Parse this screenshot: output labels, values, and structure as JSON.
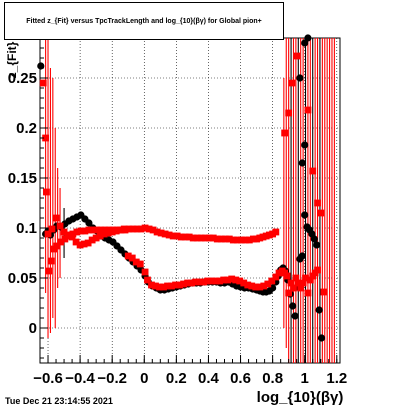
{
  "header": {
    "title": "Fitted z_{Fit} versus TpcTrackLength and log_{10}(βγ) for Global pion+"
  },
  "footer": {
    "timestamp": "Tue Dec 21 23:14:55 2021"
  },
  "chart_data": {
    "type": "scatter",
    "title": "Fitted z_{Fit} versus TpcTrackLength and log_{10}(βγ) for Global pion+",
    "xlabel": "log_{10}(βγ)",
    "ylabel": "z_{Fit}",
    "xlim": [
      -0.65,
      1.22
    ],
    "ylim": [
      -0.035,
      0.29
    ],
    "x_ticks": [
      -0.6,
      -0.4,
      -0.2,
      0,
      0.2,
      0.4,
      0.6,
      0.8,
      1,
      1.2
    ],
    "x_tick_labels": [
      "−0.6",
      "−0.4",
      "−0.2",
      "0",
      "0.2",
      "0.4",
      "0.6",
      "0.8",
      "1",
      "1.2"
    ],
    "y_ticks": [
      0,
      0.05,
      0.1,
      0.15,
      0.2,
      0.25
    ],
    "y_tick_labels": [
      "0",
      "0.05",
      "0.1",
      "0.15",
      "0.2",
      "0.25"
    ],
    "grid": true,
    "legend": "none",
    "series": [
      {
        "color": "#000000",
        "marker": "circle",
        "points": [
          [
            -0.645,
            0.262
          ],
          [
            -0.615,
            0.094
          ],
          [
            -0.6,
            0.097
          ],
          [
            -0.585,
            0.093
          ],
          [
            -0.565,
            0.098
          ],
          [
            -0.545,
            0.102
          ],
          [
            -0.52,
            0.101
          ],
          [
            -0.495,
            0.104
          ],
          [
            -0.47,
            0.107
          ],
          [
            -0.445,
            0.109
          ],
          [
            -0.42,
            0.111
          ],
          [
            -0.395,
            0.113
          ],
          [
            -0.37,
            0.109
          ],
          [
            -0.345,
            0.105
          ],
          [
            -0.32,
            0.1
          ],
          [
            -0.295,
            0.097
          ],
          [
            -0.27,
            0.092
          ],
          [
            -0.245,
            0.09
          ],
          [
            -0.22,
            0.088
          ],
          [
            -0.195,
            0.086
          ],
          [
            -0.17,
            0.082
          ],
          [
            -0.145,
            0.078
          ],
          [
            -0.12,
            0.074
          ],
          [
            -0.095,
            0.07
          ],
          [
            -0.07,
            0.066
          ],
          [
            -0.045,
            0.062
          ],
          [
            -0.02,
            0.058
          ],
          [
            0.005,
            0.052
          ],
          [
            0.025,
            0.046
          ],
          [
            0.05,
            0.042
          ],
          [
            0.075,
            0.04
          ],
          [
            0.1,
            0.038
          ],
          [
            0.125,
            0.038
          ],
          [
            0.15,
            0.039
          ],
          [
            0.175,
            0.04
          ],
          [
            0.2,
            0.041
          ],
          [
            0.225,
            0.042
          ],
          [
            0.25,
            0.043
          ],
          [
            0.275,
            0.044
          ],
          [
            0.3,
            0.045
          ],
          [
            0.325,
            0.045
          ],
          [
            0.35,
            0.045
          ],
          [
            0.375,
            0.046
          ],
          [
            0.4,
            0.046
          ],
          [
            0.425,
            0.046
          ],
          [
            0.45,
            0.046
          ],
          [
            0.475,
            0.045
          ],
          [
            0.5,
            0.045
          ],
          [
            0.525,
            0.046
          ],
          [
            0.55,
            0.044
          ],
          [
            0.575,
            0.042
          ],
          [
            0.6,
            0.041
          ],
          [
            0.625,
            0.04
          ],
          [
            0.65,
            0.04
          ],
          [
            0.675,
            0.039
          ],
          [
            0.7,
            0.038
          ],
          [
            0.72,
            0.037
          ],
          [
            0.74,
            0.036
          ],
          [
            0.76,
            0.036
          ],
          [
            0.78,
            0.037
          ],
          [
            0.8,
            0.04
          ],
          [
            0.82,
            0.046
          ],
          [
            0.835,
            0.052
          ],
          [
            0.85,
            0.058
          ],
          [
            0.865,
            0.06
          ],
          [
            0.88,
            0.057
          ],
          [
            0.895,
            0.048
          ],
          [
            0.91,
            0.034
          ],
          [
            0.925,
            0.022
          ],
          [
            0.94,
            0.012
          ],
          [
            0.955,
            0.041
          ],
          [
            0.97,
            0.069
          ],
          [
            0.985,
            0.072
          ],
          [
            1.0,
            0.113
          ],
          [
            1.015,
            0.101
          ],
          [
            1.03,
            0.098
          ],
          [
            1.045,
            0.094
          ],
          [
            1.06,
            0.089
          ],
          [
            1.075,
            0.083
          ],
          [
            1.09,
            0.018
          ],
          [
            1.105,
            -0.01
          ],
          [
            0.985,
            0.165
          ],
          [
            1.0,
            0.183
          ],
          [
            0.97,
            0.25
          ],
          [
            1.0,
            0.285
          ],
          [
            1.02,
            0.29
          ]
        ]
      },
      {
        "color": "#ff0000",
        "marker": "square",
        "points": [
          [
            -0.61,
            0.136
          ],
          [
            -0.595,
            0.057
          ],
          [
            -0.58,
            0.067
          ],
          [
            -0.565,
            0.079
          ],
          [
            -0.545,
            0.082
          ],
          [
            -0.52,
            0.086
          ],
          [
            -0.495,
            0.089
          ],
          [
            -0.47,
            0.092
          ],
          [
            -0.445,
            0.094
          ],
          [
            -0.42,
            0.096
          ],
          [
            -0.395,
            0.097
          ],
          [
            -0.37,
            0.097
          ],
          [
            -0.345,
            0.098
          ],
          [
            -0.32,
            0.098
          ],
          [
            -0.295,
            0.098
          ],
          [
            -0.27,
            0.098
          ],
          [
            -0.245,
            0.098
          ],
          [
            -0.22,
            0.098
          ],
          [
            -0.195,
            0.098
          ],
          [
            -0.17,
            0.098
          ],
          [
            -0.145,
            0.098
          ],
          [
            -0.12,
            0.098
          ],
          [
            -0.095,
            0.099
          ],
          [
            -0.07,
            0.099
          ],
          [
            -0.045,
            0.099
          ],
          [
            -0.02,
            0.099
          ],
          [
            0.005,
            0.1
          ],
          [
            0.03,
            0.099
          ],
          [
            0.055,
            0.098
          ],
          [
            0.08,
            0.096
          ],
          [
            0.105,
            0.095
          ],
          [
            0.13,
            0.094
          ],
          [
            0.155,
            0.093
          ],
          [
            0.18,
            0.092
          ],
          [
            0.205,
            0.092
          ],
          [
            0.23,
            0.091
          ],
          [
            0.255,
            0.091
          ],
          [
            0.28,
            0.091
          ],
          [
            0.305,
            0.09
          ],
          [
            0.33,
            0.09
          ],
          [
            0.355,
            0.09
          ],
          [
            0.38,
            0.09
          ],
          [
            0.405,
            0.09
          ],
          [
            0.43,
            0.09
          ],
          [
            0.455,
            0.089
          ],
          [
            0.48,
            0.089
          ],
          [
            0.505,
            0.089
          ],
          [
            0.53,
            0.089
          ],
          [
            0.555,
            0.088
          ],
          [
            0.58,
            0.088
          ],
          [
            0.605,
            0.088
          ],
          [
            0.63,
            0.088
          ],
          [
            0.655,
            0.088
          ],
          [
            0.68,
            0.089
          ],
          [
            0.7,
            0.089
          ],
          [
            0.72,
            0.09
          ],
          [
            0.74,
            0.091
          ],
          [
            0.76,
            0.092
          ],
          [
            0.78,
            0.093
          ],
          [
            0.8,
            0.094
          ],
          [
            0.82,
            0.096
          ],
          [
            -0.6,
            0.094
          ],
          [
            -0.575,
            0.099
          ],
          [
            -0.55,
            0.11
          ],
          [
            -0.525,
            0.102
          ],
          [
            -0.5,
            0.096
          ],
          [
            -0.475,
            0.093
          ],
          [
            -0.45,
            0.091
          ],
          [
            -0.425,
            0.086
          ],
          [
            -0.4,
            0.083
          ],
          [
            -0.375,
            0.084
          ],
          [
            -0.35,
            0.085
          ],
          [
            -0.325,
            0.088
          ],
          [
            -0.3,
            0.09
          ],
          [
            -0.275,
            0.092
          ],
          [
            -0.25,
            0.094
          ],
          [
            -0.225,
            0.095
          ],
          [
            -0.2,
            0.096
          ],
          [
            -0.175,
            0.097
          ],
          [
            -0.15,
            0.098
          ],
          [
            -0.125,
            0.099
          ],
          [
            -0.1,
            0.072
          ],
          [
            -0.075,
            0.07
          ],
          [
            -0.05,
            0.066
          ],
          [
            -0.025,
            0.064
          ],
          [
            0.005,
            0.056
          ],
          [
            0.02,
            0.048
          ],
          [
            0.045,
            0.043
          ],
          [
            0.07,
            0.042
          ],
          [
            0.095,
            0.041
          ],
          [
            0.12,
            0.041
          ],
          [
            0.145,
            0.042
          ],
          [
            0.17,
            0.042
          ],
          [
            0.195,
            0.043
          ],
          [
            0.22,
            0.043
          ],
          [
            0.245,
            0.044
          ],
          [
            0.27,
            0.045
          ],
          [
            0.295,
            0.045
          ],
          [
            0.32,
            0.046
          ],
          [
            0.345,
            0.046
          ],
          [
            0.37,
            0.046
          ],
          [
            0.395,
            0.047
          ],
          [
            0.42,
            0.047
          ],
          [
            0.445,
            0.047
          ],
          [
            0.47,
            0.047
          ],
          [
            0.495,
            0.048
          ],
          [
            0.52,
            0.048
          ],
          [
            0.545,
            0.049
          ],
          [
            0.57,
            0.048
          ],
          [
            0.595,
            0.047
          ],
          [
            0.62,
            0.045
          ],
          [
            0.645,
            0.043
          ],
          [
            0.67,
            0.042
          ],
          [
            0.695,
            0.041
          ],
          [
            0.72,
            0.041
          ],
          [
            0.745,
            0.042
          ],
          [
            0.77,
            0.044
          ],
          [
            0.795,
            0.047
          ],
          [
            0.82,
            0.051
          ],
          [
            0.84,
            0.055
          ],
          [
            0.86,
            0.057
          ],
          [
            0.875,
            0.055
          ],
          [
            0.89,
            0.052
          ],
          [
            0.9,
            0.035
          ],
          [
            0.915,
            0.045
          ],
          [
            0.93,
            0.04
          ],
          [
            0.945,
            0.05
          ],
          [
            0.96,
            0.045
          ],
          [
            0.975,
            0.04
          ],
          [
            0.99,
            0.045
          ],
          [
            1.005,
            0.05
          ],
          [
            1.02,
            0.035
          ],
          [
            1.035,
            0.048
          ],
          [
            1.05,
            0.052
          ],
          [
            1.065,
            0.055
          ],
          [
            1.08,
            0.058
          ],
          [
            1.12,
            0.036
          ],
          [
            -0.63,
            0.245
          ],
          [
            -0.615,
            0.19
          ],
          [
            0.875,
            0.195
          ],
          [
            0.9,
            0.215
          ],
          [
            0.92,
            0.245
          ],
          [
            0.95,
            0.272
          ],
          [
            1.02,
            0.218
          ],
          [
            1.05,
            0.157
          ],
          [
            1.08,
            0.125
          ],
          [
            1.1,
            0.115
          ]
        ]
      }
    ],
    "error_bars": [
      {
        "x": -0.615,
        "lo": 0.035,
        "hi": 0.29,
        "color": "#ff0000"
      },
      {
        "x": -0.6,
        "lo": -0.01,
        "hi": 0.29,
        "color": "#ff0000"
      },
      {
        "x": -0.585,
        "lo": -0.005,
        "hi": 0.26,
        "color": "#ff0000"
      },
      {
        "x": -0.57,
        "lo": 0.01,
        "hi": 0.25,
        "color": "#ff0000"
      },
      {
        "x": -0.555,
        "lo": 0.0,
        "hi": 0.2,
        "color": "#ff0000"
      },
      {
        "x": -0.54,
        "lo": 0.04,
        "hi": 0.16,
        "color": "#ff0000"
      },
      {
        "x": -0.525,
        "lo": 0.05,
        "hi": 0.14,
        "color": "#ff0000"
      },
      {
        "x": -0.5,
        "lo": 0.07,
        "hi": 0.12,
        "color": "#000000"
      },
      {
        "x": 0.87,
        "lo": 0.0,
        "hi": 0.25,
        "color": "#ff0000"
      },
      {
        "x": 0.885,
        "lo": -0.02,
        "hi": 0.29,
        "color": "#ff0000"
      },
      {
        "x": 0.9,
        "lo": -0.035,
        "hi": 0.29,
        "color": "#ff0000"
      },
      {
        "x": 0.915,
        "lo": -0.035,
        "hi": 0.29,
        "color": "#000000"
      },
      {
        "x": 0.93,
        "lo": -0.035,
        "hi": 0.29,
        "color": "#ff0000"
      },
      {
        "x": 0.945,
        "lo": -0.035,
        "hi": 0.29,
        "color": "#ff0000"
      },
      {
        "x": 0.96,
        "lo": -0.035,
        "hi": 0.29,
        "color": "#000000"
      },
      {
        "x": 0.975,
        "lo": -0.035,
        "hi": 0.29,
        "color": "#ff0000"
      },
      {
        "x": 0.99,
        "lo": -0.035,
        "hi": 0.29,
        "color": "#ff0000"
      },
      {
        "x": 1.005,
        "lo": -0.035,
        "hi": 0.29,
        "color": "#000000"
      },
      {
        "x": 1.02,
        "lo": -0.035,
        "hi": 0.29,
        "color": "#ff0000"
      },
      {
        "x": 1.035,
        "lo": -0.035,
        "hi": 0.29,
        "color": "#ff0000"
      },
      {
        "x": 1.05,
        "lo": -0.035,
        "hi": 0.29,
        "color": "#000000"
      },
      {
        "x": 1.065,
        "lo": -0.035,
        "hi": 0.29,
        "color": "#ff0000"
      },
      {
        "x": 1.08,
        "lo": -0.035,
        "hi": 0.29,
        "color": "#ff0000"
      },
      {
        "x": 1.095,
        "lo": -0.035,
        "hi": 0.29,
        "color": "#000000"
      },
      {
        "x": 1.11,
        "lo": -0.035,
        "hi": 0.29,
        "color": "#ff0000"
      },
      {
        "x": 1.125,
        "lo": -0.035,
        "hi": 0.29,
        "color": "#ff0000"
      },
      {
        "x": 1.14,
        "lo": -0.035,
        "hi": 0.29,
        "color": "#ff0000"
      },
      {
        "x": 1.155,
        "lo": -0.035,
        "hi": 0.29,
        "color": "#ff0000"
      },
      {
        "x": 1.17,
        "lo": -0.035,
        "hi": 0.29,
        "color": "#ff0000"
      },
      {
        "x": 1.185,
        "lo": -0.035,
        "hi": 0.29,
        "color": "#ff0000"
      }
    ]
  }
}
